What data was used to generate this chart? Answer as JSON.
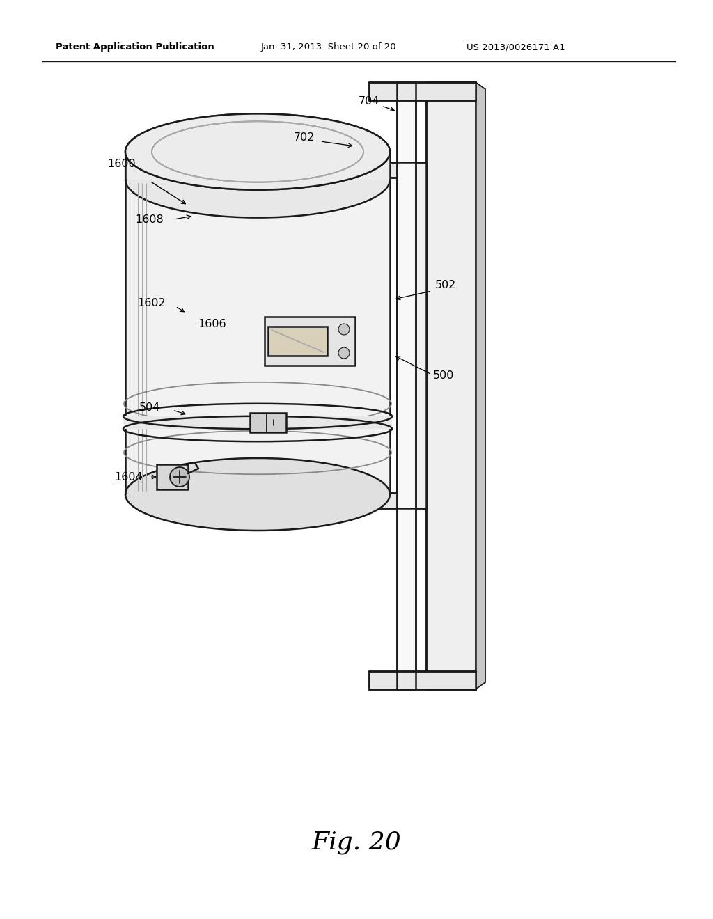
{
  "background_color": "#ffffff",
  "header_left": "Patent Application Publication",
  "header_center": "Jan. 31, 2013  Sheet 20 of 20",
  "header_right": "US 2013/0026171 A1",
  "figure_label": "Fig. 20",
  "line_color": "#1a1a1a",
  "fill_light": "#f5f5f5",
  "fill_mid": "#e8e8e8",
  "fill_dark": "#d0d0d0",
  "fill_darker": "#b8b8b8"
}
